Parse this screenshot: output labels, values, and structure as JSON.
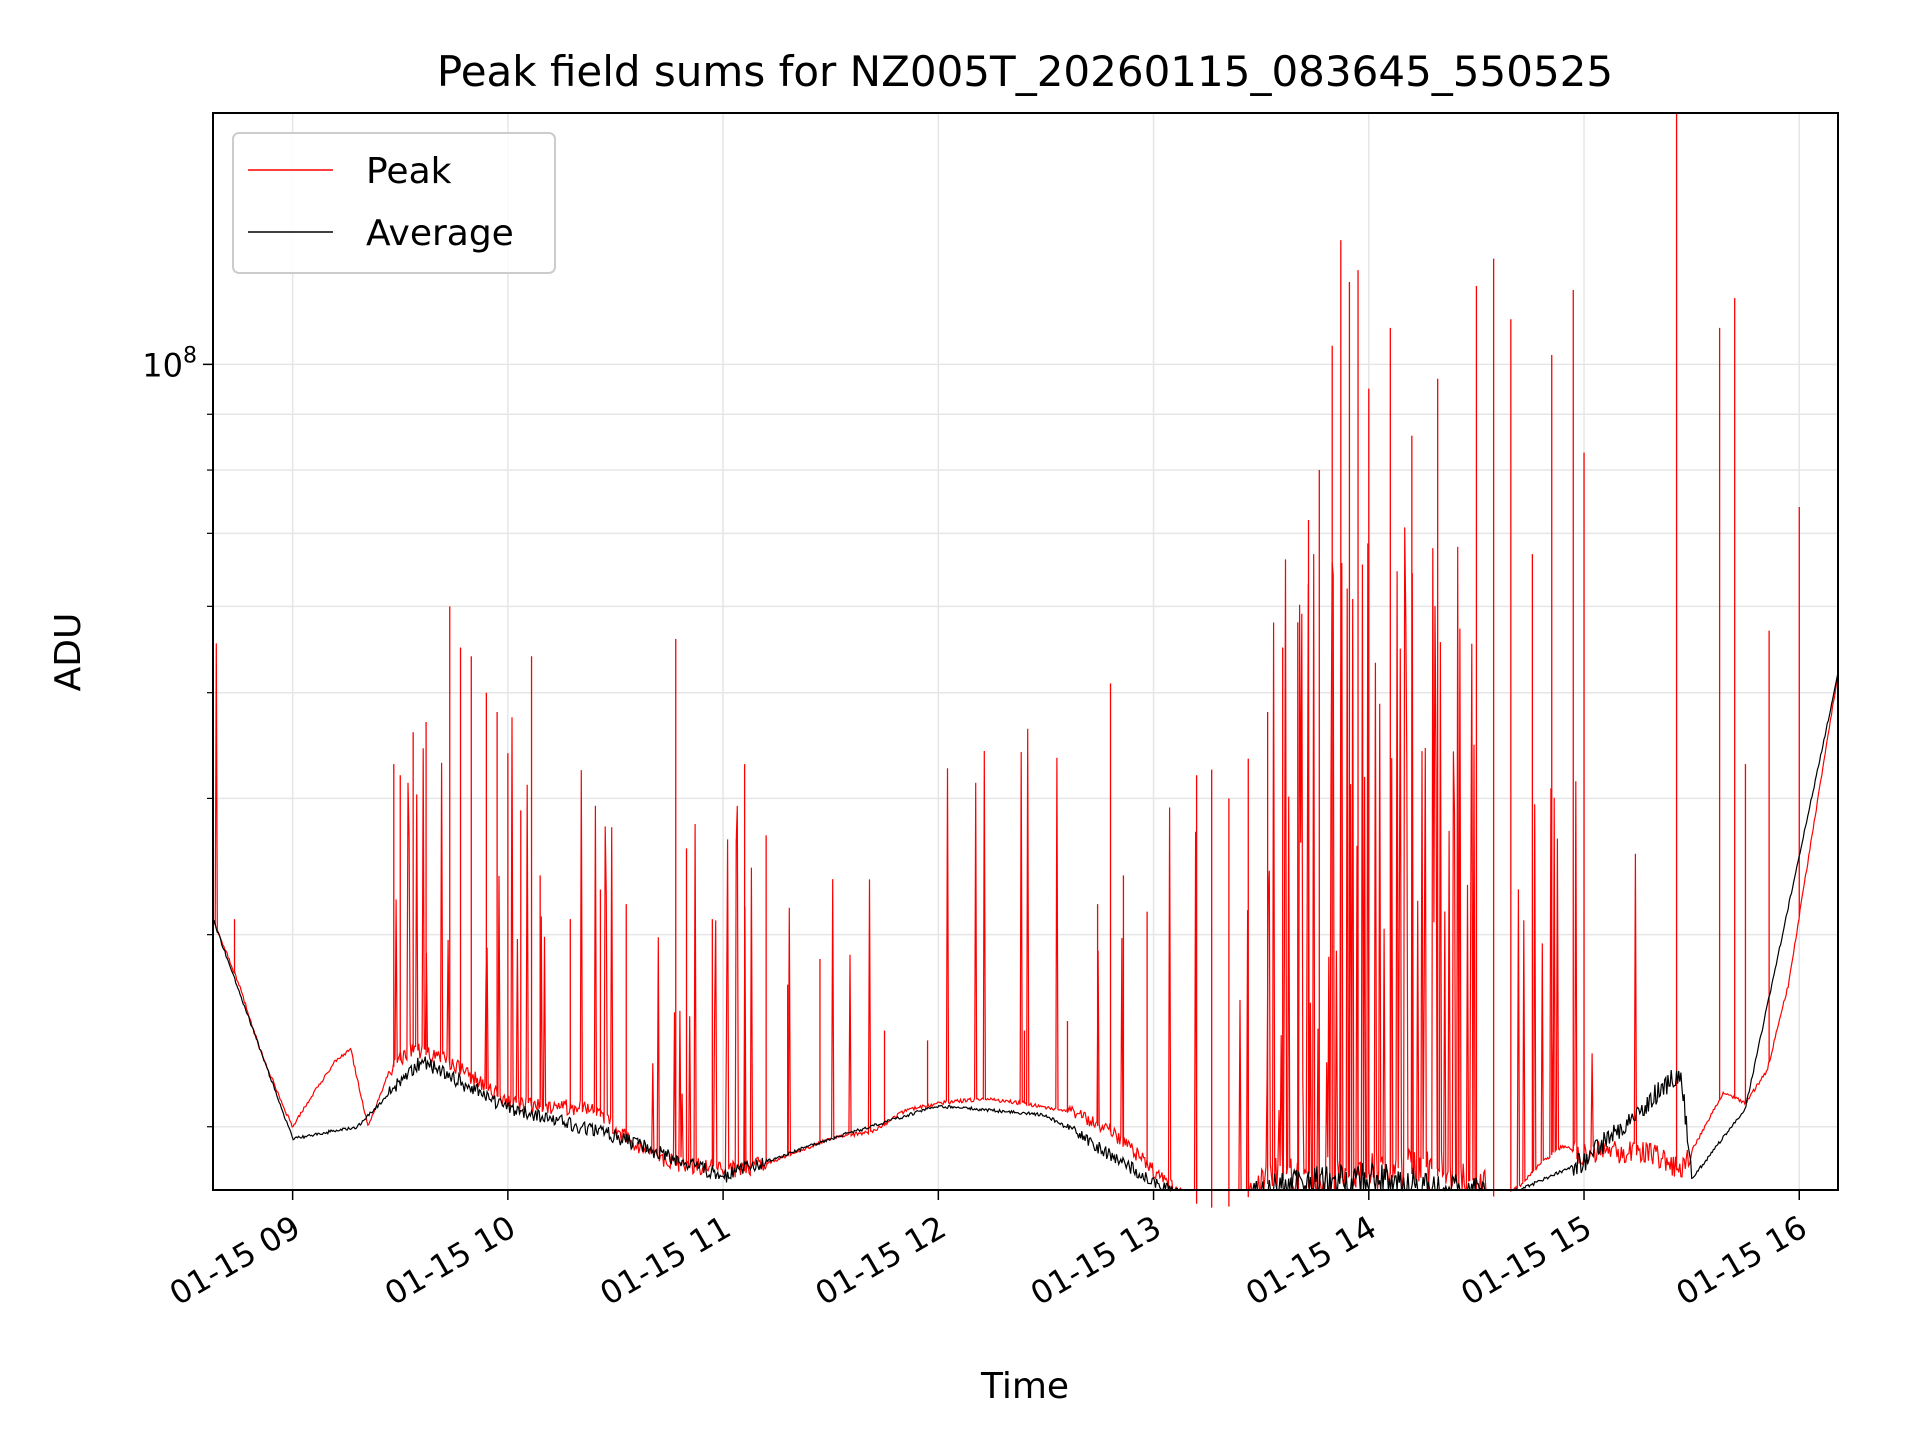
{
  "chart_data": {
    "type": "line",
    "title": "Peak field sums for NZ005T_20260115_083645_550525",
    "xlabel": "Time",
    "ylabel": "ADU",
    "yscale": "log",
    "ylim": [
      17500000,
      170000000
    ],
    "xlim_hours": [
      8.63,
      16.18
    ],
    "grid": true,
    "legend_position": "top-left",
    "x_tick_labels": [
      "01-15 09",
      "01-15 10",
      "01-15 11",
      "01-15 12",
      "01-15 13",
      "01-15 14",
      "01-15 15",
      "01-15 16"
    ],
    "x_tick_hours": [
      9,
      10,
      11,
      12,
      13,
      14,
      15,
      16
    ],
    "y_tick_label": {
      "base": "10",
      "exponent": "8",
      "value": 100000000
    },
    "y_minor_ticks": [
      20000000,
      30000000,
      40000000,
      50000000,
      60000000,
      70000000,
      80000000,
      90000000
    ],
    "series": [
      {
        "name": "Peak",
        "color": "#ff0000",
        "baseline_points": [
          [
            8.63,
            31000000
          ],
          [
            8.75,
            27000000
          ],
          [
            8.85,
            23500000
          ],
          [
            8.95,
            21000000
          ],
          [
            9.0,
            20000000
          ],
          [
            9.1,
            21500000
          ],
          [
            9.2,
            23000000
          ],
          [
            9.27,
            23500000
          ],
          [
            9.35,
            20000000
          ],
          [
            9.45,
            22500000
          ],
          [
            9.55,
            23500000
          ],
          [
            9.7,
            23000000
          ],
          [
            9.85,
            22000000
          ],
          [
            10.0,
            21000000
          ],
          [
            10.2,
            20800000
          ],
          [
            10.4,
            20700000
          ],
          [
            10.5,
            19800000
          ],
          [
            10.65,
            18800000
          ],
          [
            10.8,
            18400000
          ],
          [
            10.95,
            18300000
          ],
          [
            11.1,
            18200000
          ],
          [
            11.3,
            18800000
          ],
          [
            11.5,
            19500000
          ],
          [
            11.7,
            19800000
          ],
          [
            11.85,
            20700000
          ],
          [
            12.0,
            21000000
          ],
          [
            12.2,
            21200000
          ],
          [
            12.4,
            21000000
          ],
          [
            12.6,
            20600000
          ],
          [
            12.8,
            19800000
          ],
          [
            12.95,
            18600000
          ],
          [
            13.05,
            17800000
          ],
          [
            13.15,
            17100000
          ],
          [
            13.3,
            16800000
          ],
          [
            13.4,
            17000000
          ],
          [
            13.5,
            17600000
          ],
          [
            13.6,
            18000000
          ],
          [
            13.7,
            17500000
          ],
          [
            13.8,
            17800000
          ],
          [
            13.9,
            18000000
          ],
          [
            14.0,
            18100000
          ],
          [
            14.2,
            18100000
          ],
          [
            14.35,
            18000000
          ],
          [
            14.5,
            17500000
          ],
          [
            14.6,
            17200000
          ],
          [
            14.7,
            17600000
          ],
          [
            14.8,
            18500000
          ],
          [
            14.9,
            19200000
          ],
          [
            15.0,
            18800000
          ],
          [
            15.2,
            18900000
          ],
          [
            15.35,
            18700000
          ],
          [
            15.45,
            18200000
          ],
          [
            15.55,
            19800000
          ],
          [
            15.65,
            21500000
          ],
          [
            15.75,
            21000000
          ],
          [
            15.85,
            22500000
          ],
          [
            15.95,
            27000000
          ],
          [
            16.05,
            36000000
          ],
          [
            16.18,
            52000000
          ]
        ],
        "spikes": [
          [
            8.73,
            31000000
          ],
          [
            9.47,
            43000000
          ],
          [
            9.5,
            42000000
          ],
          [
            9.56,
            46000000
          ],
          [
            9.62,
            47000000
          ],
          [
            9.73,
            60000000
          ],
          [
            9.78,
            55000000
          ],
          [
            9.83,
            54000000
          ],
          [
            9.9,
            50000000
          ],
          [
            9.95,
            48000000
          ],
          [
            10.0,
            44000000
          ],
          [
            10.06,
            39000000
          ],
          [
            10.11,
            54000000
          ],
          [
            10.15,
            34000000
          ],
          [
            10.29,
            31000000
          ],
          [
            10.43,
            33000000
          ],
          [
            10.55,
            32000000
          ],
          [
            10.78,
            56000000
          ],
          [
            10.83,
            36000000
          ],
          [
            10.95,
            31000000
          ],
          [
            11.1,
            43000000
          ],
          [
            11.2,
            37000000
          ],
          [
            11.3,
            27000000
          ],
          [
            11.45,
            28500000
          ],
          [
            11.75,
            24500000
          ],
          [
            11.95,
            24000000
          ],
          [
            12.4,
            24500000
          ],
          [
            12.6,
            25000000
          ],
          [
            12.74,
            32000000
          ],
          [
            12.8,
            51000000
          ],
          [
            12.86,
            34000000
          ],
          [
            12.97,
            31500000
          ],
          [
            13.2,
            42000000
          ],
          [
            13.27,
            42500000
          ],
          [
            13.35,
            40000000
          ],
          [
            13.44,
            43500000
          ],
          [
            13.53,
            48000000
          ],
          [
            13.6,
            55000000
          ],
          [
            13.67,
            58000000
          ],
          [
            13.72,
            72000000
          ],
          [
            13.77,
            80000000
          ],
          [
            13.83,
            104000000
          ],
          [
            13.87,
            130000000
          ],
          [
            13.91,
            119000000
          ],
          [
            13.95,
            122000000
          ],
          [
            14.0,
            95000000
          ],
          [
            14.1,
            108000000
          ],
          [
            14.2,
            86000000
          ],
          [
            14.32,
            97000000
          ],
          [
            14.5,
            118000000
          ],
          [
            14.58,
            125000000
          ],
          [
            14.66,
            110000000
          ],
          [
            14.76,
            67000000
          ],
          [
            14.85,
            102000000
          ],
          [
            14.95,
            117000000
          ],
          [
            15.0,
            83000000
          ],
          [
            15.43,
            170000000
          ],
          [
            15.63,
            108000000
          ],
          [
            15.7,
            115000000
          ],
          [
            15.75,
            43000000
          ],
          [
            15.86,
            57000000
          ],
          [
            16.0,
            74000000
          ]
        ]
      },
      {
        "name": "Average",
        "color": "#000000",
        "notable_points": [
          [
            8.63,
            31000000
          ],
          [
            9.0,
            19500000
          ],
          [
            9.3,
            20000000
          ],
          [
            9.6,
            23000000
          ],
          [
            10.0,
            20800000
          ],
          [
            10.5,
            19600000
          ],
          [
            11.0,
            18000000
          ],
          [
            11.5,
            19500000
          ],
          [
            12.0,
            20900000
          ],
          [
            12.5,
            20500000
          ],
          [
            13.0,
            17800000
          ],
          [
            13.3,
            16600000
          ],
          [
            13.6,
            17600000
          ],
          [
            14.0,
            17900000
          ],
          [
            14.5,
            17300000
          ],
          [
            14.7,
            17500000
          ],
          [
            15.0,
            18600000
          ],
          [
            15.45,
            22500000
          ],
          [
            15.5,
            17900000
          ],
          [
            15.75,
            20800000
          ],
          [
            16.18,
            52000000
          ]
        ]
      }
    ]
  }
}
